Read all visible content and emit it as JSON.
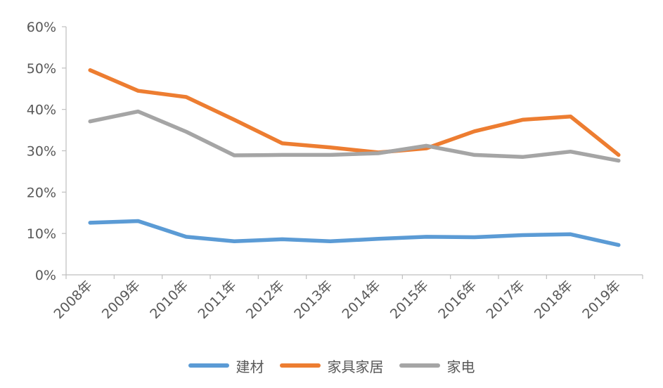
{
  "chart_data": {
    "type": "line",
    "categories": [
      "2008年",
      "2009年",
      "2010年",
      "2011年",
      "2012年",
      "2013年",
      "2014年",
      "2015年",
      "2016年",
      "2017年",
      "2018年",
      "2019年"
    ],
    "ylim": [
      0,
      60
    ],
    "yticks": [
      0,
      10,
      20,
      30,
      40,
      50,
      60
    ],
    "ytick_labels": [
      "0%",
      "10%",
      "20%",
      "30%",
      "40%",
      "50%",
      "60%"
    ],
    "grid": false,
    "legend_position": "bottom",
    "series": [
      {
        "name": "建材",
        "color": "#5B9BD5",
        "values": [
          12.6,
          13.0,
          9.2,
          8.1,
          8.6,
          8.1,
          8.7,
          9.2,
          9.1,
          9.6,
          9.8,
          7.2
        ]
      },
      {
        "name": "家具家居",
        "color": "#ED7D31",
        "values": [
          49.5,
          44.5,
          43.0,
          37.5,
          31.8,
          30.8,
          29.6,
          30.6,
          34.7,
          37.5,
          38.3,
          29.0
        ]
      },
      {
        "name": "家电",
        "color": "#A5A5A5",
        "values": [
          37.1,
          39.5,
          34.6,
          28.9,
          29.0,
          29.0,
          29.4,
          31.2,
          29.0,
          28.5,
          29.8,
          27.6
        ]
      }
    ]
  }
}
